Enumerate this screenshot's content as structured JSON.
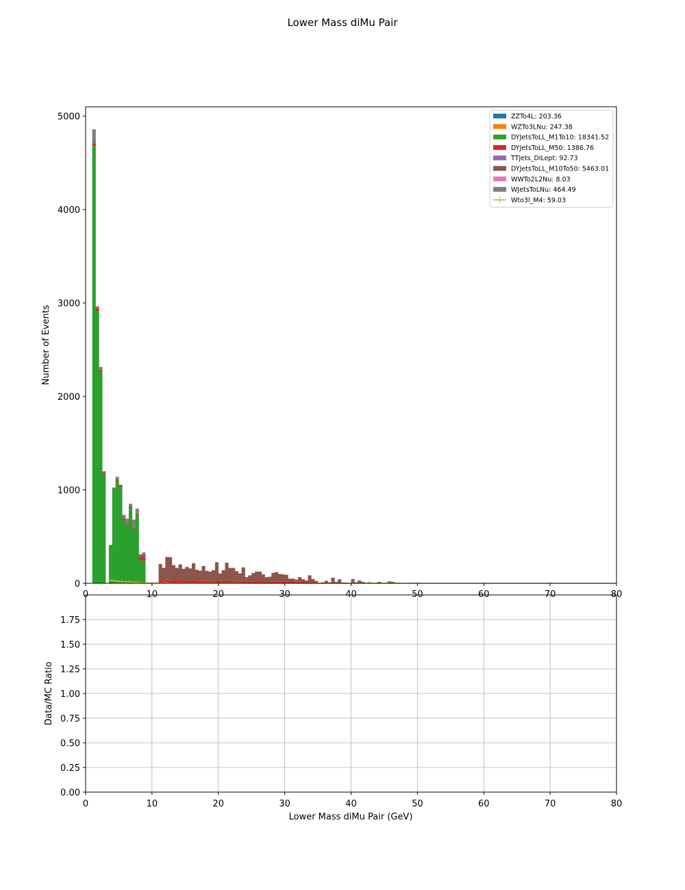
{
  "figure": {
    "title": "Lower Mass diMu Pair"
  },
  "chart_data": [
    {
      "type": "bar",
      "stacked": true,
      "panel": "main",
      "ylabel": "Number of Events",
      "xlabel": "",
      "xlim": [
        0,
        80
      ],
      "ylim": [
        0,
        5100
      ],
      "xticks": [
        0,
        10,
        20,
        30,
        40,
        50,
        60,
        70,
        80
      ],
      "yticks": [
        0,
        1000,
        2000,
        3000,
        4000,
        5000
      ],
      "bin_width": 0.5,
      "grid": false,
      "legend_position": "top-right",
      "series": [
        {
          "name": "ZZTo4L: 203.36",
          "color": "#1f77b4",
          "bins": [
            [
              11.0,
              3
            ],
            [
              12.0,
              4
            ],
            [
              14.0,
              3
            ],
            [
              16.0,
              3
            ],
            [
              20.0,
              3
            ],
            [
              24.0,
              2
            ],
            [
              28.0,
              2
            ],
            [
              32.0,
              2
            ],
            [
              36.0,
              2
            ]
          ]
        },
        {
          "name": "WZTo3LNu: 247.38",
          "color": "#ff7f0e",
          "bins": [
            [
              11.0,
              4
            ],
            [
              12.0,
              5
            ],
            [
              14.0,
              4
            ],
            [
              16.0,
              4
            ],
            [
              18.0,
              3
            ],
            [
              20.0,
              4
            ],
            [
              24.0,
              3
            ],
            [
              28.0,
              3
            ],
            [
              32.0,
              2
            ]
          ]
        },
        {
          "name": "DYJetsToLL_M1To10: 18341.52",
          "color": "#2ca02c",
          "bins": [
            [
              1.0,
              4680
            ],
            [
              1.5,
              2920
            ],
            [
              2.0,
              2260
            ],
            [
              2.5,
              1170
            ],
            [
              3.5,
              410
            ],
            [
              4.0,
              1000
            ],
            [
              4.5,
              1100
            ],
            [
              5.0,
              1030
            ],
            [
              5.5,
              680
            ],
            [
              6.0,
              620
            ],
            [
              6.5,
              810
            ],
            [
              7.0,
              570
            ],
            [
              7.5,
              730
            ],
            [
              8.0,
              250
            ],
            [
              8.5,
              240
            ]
          ]
        },
        {
          "name": "DYJetsToLL_M50: 1386.76",
          "color": "#d62728",
          "bins": [
            [
              1.0,
              30
            ],
            [
              1.5,
              25
            ],
            [
              2.0,
              20
            ],
            [
              2.5,
              15
            ],
            [
              4.0,
              10
            ],
            [
              4.5,
              10
            ],
            [
              5.0,
              10
            ],
            [
              5.5,
              12
            ],
            [
              6.0,
              12
            ],
            [
              6.5,
              12
            ],
            [
              7.0,
              12
            ],
            [
              7.5,
              10
            ],
            [
              8.0,
              30
            ],
            [
              8.5,
              40
            ],
            [
              11.0,
              25
            ],
            [
              11.5,
              20
            ],
            [
              12.0,
              30
            ],
            [
              12.5,
              35
            ],
            [
              13.0,
              30
            ],
            [
              13.5,
              40
            ],
            [
              14.0,
              30
            ],
            [
              14.5,
              25
            ],
            [
              15.0,
              30
            ],
            [
              15.5,
              25
            ],
            [
              16.0,
              30
            ],
            [
              16.5,
              25
            ],
            [
              17.0,
              20
            ],
            [
              17.5,
              30
            ],
            [
              18.0,
              25
            ],
            [
              18.5,
              20
            ],
            [
              19.0,
              25
            ],
            [
              19.5,
              30
            ],
            [
              20.0,
              20
            ],
            [
              20.5,
              25
            ],
            [
              21.0,
              30
            ],
            [
              21.5,
              25
            ],
            [
              22.0,
              25
            ],
            [
              22.5,
              20
            ],
            [
              23.0,
              20
            ],
            [
              23.5,
              25
            ],
            [
              24.0,
              20
            ],
            [
              24.5,
              15
            ],
            [
              25.0,
              20
            ],
            [
              25.5,
              25
            ],
            [
              26.0,
              25
            ],
            [
              26.5,
              20
            ],
            [
              27.0,
              15
            ],
            [
              27.5,
              15
            ],
            [
              28.0,
              20
            ],
            [
              28.5,
              20
            ],
            [
              29.0,
              20
            ],
            [
              29.5,
              15
            ],
            [
              30.0,
              15
            ],
            [
              30.5,
              15
            ],
            [
              31.0,
              15
            ],
            [
              31.5,
              15
            ],
            [
              32.0,
              15
            ],
            [
              32.5,
              15
            ],
            [
              33.0,
              10
            ],
            [
              33.5,
              15
            ],
            [
              34.0,
              15
            ],
            [
              34.5,
              10
            ],
            [
              36.0,
              10
            ],
            [
              37.0,
              10
            ],
            [
              38.0,
              8
            ],
            [
              40.0,
              8
            ],
            [
              41.0,
              5
            ],
            [
              42.0,
              5
            ],
            [
              44.0,
              5
            ],
            [
              46.0,
              5
            ]
          ]
        },
        {
          "name": "TTJets_DiLept: 92.73",
          "color": "#9467bd",
          "bins": [
            [
              12.0,
              3
            ],
            [
              16.0,
              3
            ],
            [
              20.0,
              3
            ],
            [
              24.0,
              2
            ],
            [
              28.0,
              2
            ],
            [
              32.0,
              2
            ],
            [
              40.0,
              2
            ]
          ]
        },
        {
          "name": "DYJetsToLL_M10To50: 5463.01",
          "color": "#8c564b",
          "bins": [
            [
              5.0,
              10
            ],
            [
              8.0,
              20
            ],
            [
              8.5,
              30
            ],
            [
              11.0,
              175
            ],
            [
              11.5,
              145
            ],
            [
              12.0,
              240
            ],
            [
              12.5,
              245
            ],
            [
              13.0,
              165
            ],
            [
              13.5,
              125
            ],
            [
              14.0,
              165
            ],
            [
              14.5,
              130
            ],
            [
              15.0,
              145
            ],
            [
              15.5,
              135
            ],
            [
              16.0,
              175
            ],
            [
              16.5,
              120
            ],
            [
              17.0,
              115
            ],
            [
              17.5,
              155
            ],
            [
              18.0,
              105
            ],
            [
              18.5,
              105
            ],
            [
              19.0,
              115
            ],
            [
              19.5,
              195
            ],
            [
              20.0,
              75
            ],
            [
              20.5,
              115
            ],
            [
              21.0,
              190
            ],
            [
              21.5,
              140
            ],
            [
              22.0,
              140
            ],
            [
              22.5,
              110
            ],
            [
              23.0,
              85
            ],
            [
              23.5,
              145
            ],
            [
              24.0,
              40
            ],
            [
              24.5,
              70
            ],
            [
              25.0,
              90
            ],
            [
              25.5,
              100
            ],
            [
              26.0,
              100
            ],
            [
              26.5,
              75
            ],
            [
              27.0,
              50
            ],
            [
              27.5,
              55
            ],
            [
              28.0,
              85
            ],
            [
              28.5,
              100
            ],
            [
              29.0,
              80
            ],
            [
              29.5,
              80
            ],
            [
              30.0,
              75
            ],
            [
              30.5,
              35
            ],
            [
              31.0,
              35
            ],
            [
              31.5,
              25
            ],
            [
              32.0,
              45
            ],
            [
              32.5,
              30
            ],
            [
              33.0,
              20
            ],
            [
              33.5,
              70
            ],
            [
              34.0,
              30
            ],
            [
              34.5,
              15
            ],
            [
              35.0,
              5
            ],
            [
              35.5,
              10
            ],
            [
              36.0,
              15
            ],
            [
              36.5,
              10
            ],
            [
              37.0,
              50
            ],
            [
              37.5,
              15
            ],
            [
              38.0,
              35
            ],
            [
              38.5,
              10
            ],
            [
              39.0,
              8
            ],
            [
              39.5,
              5
            ],
            [
              40.0,
              35
            ],
            [
              40.5,
              10
            ],
            [
              41.0,
              25
            ],
            [
              41.5,
              15
            ],
            [
              42.5,
              10
            ],
            [
              43.5,
              5
            ],
            [
              44.0,
              10
            ],
            [
              45.0,
              5
            ],
            [
              45.5,
              20
            ],
            [
              46.0,
              10
            ],
            [
              46.5,
              5
            ],
            [
              47.0,
              5
            ],
            [
              49.0,
              5
            ]
          ]
        },
        {
          "name": "WWTo2L2Nu: 8.03",
          "color": "#e377c2",
          "bins": [
            [
              20.0,
              2
            ],
            [
              30.0,
              2
            ],
            [
              40.0,
              2
            ]
          ]
        },
        {
          "name": "WJetsToLNu: 464.49",
          "color": "#7f7f7f",
          "bins": [
            [
              1.0,
              150
            ],
            [
              1.5,
              20
            ],
            [
              2.0,
              35
            ],
            [
              2.5,
              15
            ],
            [
              4.0,
              15
            ],
            [
              4.5,
              30
            ],
            [
              5.0,
              5
            ],
            [
              5.5,
              40
            ],
            [
              6.0,
              60
            ],
            [
              6.5,
              30
            ],
            [
              7.0,
              100
            ],
            [
              7.5,
              60
            ],
            [
              8.0,
              10
            ],
            [
              8.5,
              20
            ]
          ]
        }
      ],
      "line_series": [
        {
          "name": "Wto3l_M4: 59.03",
          "color": "#bcbd22",
          "x": [
            3.5,
            4.0,
            4.5,
            5.0,
            5.5,
            6.0,
            6.5,
            7.0,
            7.5,
            8.0,
            8.5,
            9.0,
            10.0,
            15.0,
            20.0,
            30.0,
            40.0,
            50.0,
            60.0,
            70.0,
            80.0
          ],
          "y": [
            35,
            30,
            25,
            20,
            18,
            15,
            15,
            12,
            10,
            8,
            5,
            3,
            2,
            1,
            1,
            0,
            0,
            0,
            0,
            0,
            0
          ]
        }
      ]
    },
    {
      "type": "line",
      "panel": "ratio",
      "ylabel": "Data/MC Ratio",
      "xlabel": "Lower Mass diMu Pair (GeV)",
      "xlim": [
        0,
        80
      ],
      "ylim": [
        0,
        2.0
      ],
      "xticks": [
        0,
        10,
        20,
        30,
        40,
        50,
        60,
        70,
        80
      ],
      "yticks": [
        "0.00",
        "0.25",
        "0.50",
        "0.75",
        "1.00",
        "1.25",
        "1.50",
        "1.75"
      ],
      "grid": true,
      "series": []
    }
  ]
}
